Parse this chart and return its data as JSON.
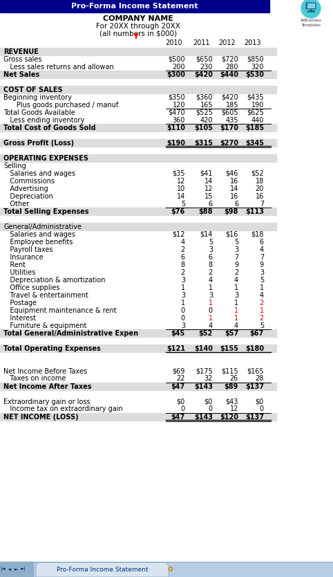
{
  "title": "Pro-Forma Income Statement",
  "company": "COMPANY NAME",
  "subtitle1": "For 20XX through 20XX",
  "subtitle2": "(all numbers in $000)",
  "header_bg": "#00008B",
  "header_text_color": "#FFFFFF",
  "years": [
    "2010",
    "2011",
    "2012",
    "2013"
  ],
  "rows": [
    {
      "label": "REVENUE",
      "values": [
        "",
        "",
        "",
        ""
      ],
      "style": "section_header",
      "bg": "#DCDCDC"
    },
    {
      "label": "Gross sales",
      "values": [
        "$500",
        "$650",
        "$720",
        "$850"
      ],
      "style": "normal",
      "bg": "#FFFFFF"
    },
    {
      "label": "   Less sales returns and allowan",
      "values": [
        "200",
        "230",
        "280",
        "320"
      ],
      "style": "normal",
      "bg": "#FFFFFF",
      "underline": true
    },
    {
      "label": "Net Sales",
      "values": [
        "$300",
        "$420",
        "$440",
        "$530"
      ],
      "style": "bold",
      "bg": "#DCDCDC"
    },
    {
      "label": "",
      "values": [
        "",
        "",
        "",
        ""
      ],
      "style": "spacer",
      "bg": "#FFFFFF"
    },
    {
      "label": "COST OF SALES",
      "values": [
        "",
        "",
        "",
        ""
      ],
      "style": "section_header",
      "bg": "#DCDCDC"
    },
    {
      "label": "Beginning inventory",
      "values": [
        "$350",
        "$360",
        "$420",
        "$435"
      ],
      "style": "normal",
      "bg": "#FFFFFF"
    },
    {
      "label": "      Plus goods purchased / manuf.",
      "values": [
        "120",
        "165",
        "185",
        "190"
      ],
      "style": "normal",
      "bg": "#FFFFFF",
      "underline": true
    },
    {
      "label": "Total Goods Available",
      "values": [
        "$470",
        "$525",
        "$605",
        "$625"
      ],
      "style": "normal",
      "bg": "#FFFFFF"
    },
    {
      "label": "   Less ending inventory",
      "values": [
        "360",
        "420",
        "435",
        "440"
      ],
      "style": "normal",
      "bg": "#FFFFFF",
      "underline": true
    },
    {
      "label": "Total Cost of Goods Sold",
      "values": [
        "$110",
        "$105",
        "$170",
        "$185"
      ],
      "style": "bold",
      "bg": "#DCDCDC"
    },
    {
      "label": "",
      "values": [
        "",
        "",
        "",
        ""
      ],
      "style": "spacer",
      "bg": "#FFFFFF"
    },
    {
      "label": "Gross Profit (Loss)",
      "values": [
        "$190",
        "$315",
        "$270",
        "$345"
      ],
      "style": "bold_dbl_underline",
      "bg": "#DCDCDC"
    },
    {
      "label": "",
      "values": [
        "",
        "",
        "",
        ""
      ],
      "style": "spacer",
      "bg": "#FFFFFF"
    },
    {
      "label": "OPERATING EXPENSES",
      "values": [
        "",
        "",
        "",
        ""
      ],
      "style": "section_header",
      "bg": "#DCDCDC"
    },
    {
      "label": "Selling",
      "values": [
        "",
        "",
        "",
        ""
      ],
      "style": "normal",
      "bg": "#FFFFFF"
    },
    {
      "label": "   Salaries and wages",
      "values": [
        "$35",
        "$41",
        "$46",
        "$52"
      ],
      "style": "normal",
      "bg": "#FFFFFF"
    },
    {
      "label": "   Commissions",
      "values": [
        "12",
        "14",
        "16",
        "18"
      ],
      "style": "normal",
      "bg": "#FFFFFF"
    },
    {
      "label": "   Advertising",
      "values": [
        "10",
        "12",
        "14",
        "20"
      ],
      "style": "normal",
      "bg": "#FFFFFF"
    },
    {
      "label": "   Depreciation",
      "values": [
        "14",
        "15",
        "16",
        "16"
      ],
      "style": "normal",
      "bg": "#FFFFFF"
    },
    {
      "label": "   Other",
      "values": [
        "5",
        "6",
        "6",
        "7"
      ],
      "style": "normal",
      "bg": "#FFFFFF",
      "underline": true
    },
    {
      "label": "Total Selling Expenses",
      "values": [
        "$76",
        "$88",
        "$98",
        "$113"
      ],
      "style": "bold",
      "bg": "#DCDCDC"
    },
    {
      "label": "",
      "values": [
        "",
        "",
        "",
        ""
      ],
      "style": "spacer",
      "bg": "#FFFFFF"
    },
    {
      "label": "General/Administrative",
      "values": [
        "",
        "",
        "",
        ""
      ],
      "style": "normal",
      "bg": "#DCDCDC"
    },
    {
      "label": "   Salaries and wages",
      "values": [
        "$12",
        "$14",
        "$16",
        "$18"
      ],
      "style": "normal",
      "bg": "#FFFFFF"
    },
    {
      "label": "   Employee benefits",
      "values": [
        "4",
        "5",
        "5",
        "6"
      ],
      "style": "normal",
      "bg": "#FFFFFF"
    },
    {
      "label": "   Payroll taxes",
      "values": [
        "2",
        "3",
        "3",
        "4"
      ],
      "style": "normal",
      "bg": "#FFFFFF"
    },
    {
      "label": "   Insurance",
      "values": [
        "6",
        "6",
        "7",
        "7"
      ],
      "style": "normal",
      "bg": "#FFFFFF"
    },
    {
      "label": "   Rent",
      "values": [
        "8",
        "8",
        "9",
        "9"
      ],
      "style": "normal",
      "bg": "#FFFFFF"
    },
    {
      "label": "   Utilities",
      "values": [
        "2",
        "2",
        "2",
        "3"
      ],
      "style": "normal",
      "bg": "#FFFFFF"
    },
    {
      "label": "   Depreciation & amortization",
      "values": [
        "3",
        "4",
        "4",
        "5"
      ],
      "style": "normal",
      "bg": "#FFFFFF"
    },
    {
      "label": "   Office supplies",
      "values": [
        "1",
        "1",
        "1",
        "1"
      ],
      "style": "normal",
      "bg": "#FFFFFF"
    },
    {
      "label": "   Travel & entertainment",
      "values": [
        "3",
        "3",
        "3",
        "4"
      ],
      "style": "normal",
      "bg": "#FFFFFF"
    },
    {
      "label": "   Postage",
      "values": [
        "1",
        "1",
        "1",
        "2"
      ],
      "style": "normal",
      "bg": "#FFFFFF",
      "red_col": [
        1,
        3
      ]
    },
    {
      "label": "   Equipment maintenance & rent",
      "values": [
        "0",
        "0",
        "1",
        "1"
      ],
      "style": "normal",
      "bg": "#FFFFFF",
      "red_col": [
        2,
        3
      ]
    },
    {
      "label": "   Interest",
      "values": [
        "0",
        "1",
        "1",
        "2"
      ],
      "style": "normal",
      "bg": "#FFFFFF",
      "red_col": [
        1,
        2,
        3
      ]
    },
    {
      "label": "   Furniture & equipment",
      "values": [
        "3",
        "4",
        "4",
        "5"
      ],
      "style": "normal",
      "bg": "#FFFFFF",
      "underline": true
    },
    {
      "label": "Total General/Administrative Expen",
      "values": [
        "$45",
        "$52",
        "$57",
        "$67"
      ],
      "style": "bold",
      "bg": "#DCDCDC"
    },
    {
      "label": "",
      "values": [
        "",
        "",
        "",
        ""
      ],
      "style": "spacer",
      "bg": "#FFFFFF"
    },
    {
      "label": "Total Operating Expenses",
      "values": [
        "$121",
        "$140",
        "$155",
        "$180"
      ],
      "style": "bold_underline",
      "bg": "#DCDCDC"
    },
    {
      "label": "",
      "values": [
        "",
        "",
        "",
        ""
      ],
      "style": "spacer",
      "bg": "#FFFFFF"
    },
    {
      "label": "",
      "values": [
        "",
        "",
        "",
        ""
      ],
      "style": "spacer",
      "bg": "#FFFFFF"
    },
    {
      "label": "Net Income Before Taxes",
      "values": [
        "$69",
        "$175",
        "$115",
        "$165"
      ],
      "style": "normal",
      "bg": "#FFFFFF"
    },
    {
      "label": "   Taxes on income",
      "values": [
        "22",
        "32",
        "26",
        "28"
      ],
      "style": "normal",
      "bg": "#FFFFFF",
      "underline": true
    },
    {
      "label": "Net Income After Taxes",
      "values": [
        "$47",
        "$143",
        "$89",
        "$137"
      ],
      "style": "bold",
      "bg": "#DCDCDC"
    },
    {
      "label": "",
      "values": [
        "",
        "",
        "",
        ""
      ],
      "style": "spacer",
      "bg": "#FFFFFF"
    },
    {
      "label": "Extraordinary gain or loss",
      "values": [
        "$0",
        "$0",
        "$43",
        "$0"
      ],
      "style": "normal",
      "bg": "#FFFFFF"
    },
    {
      "label": "   Income tax on extraordinary gain",
      "values": [
        "0",
        "0",
        "12",
        "0"
      ],
      "style": "normal",
      "bg": "#FFFFFF",
      "underline": true
    },
    {
      "label": "NET INCOME (LOSS)",
      "values": [
        "$47",
        "$143",
        "$120",
        "$137"
      ],
      "style": "bold_dbl_underline",
      "bg": "#DCDCDC"
    }
  ],
  "tab_text": "Pro-Forma Income Statement",
  "footer_bg": "#A8C0E0"
}
